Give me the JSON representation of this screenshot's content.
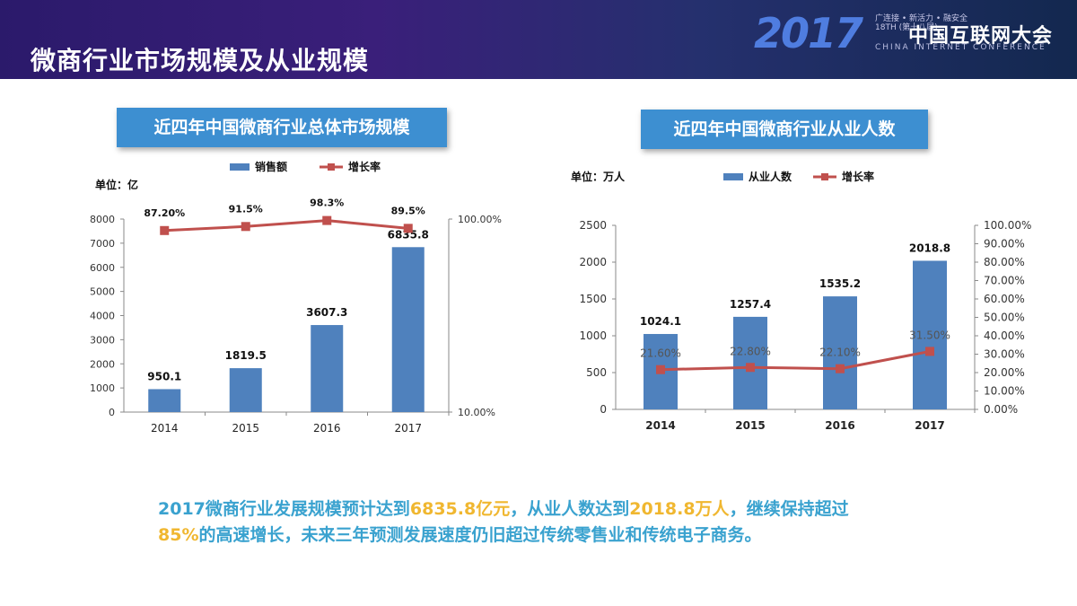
{
  "header": {
    "title": "微商行业市场规模及从业规模",
    "logo_year": "2017",
    "logo_tagline": "广连接 • 新活力 • 融安全",
    "logo_edition": "18TH (第十八届)",
    "logo_name": "中国互联网大会",
    "logo_subtitle": "CHINA INTERNET CONFERENCE"
  },
  "summary": {
    "t1": "2017微商行业发展规模预计达到",
    "h1": "6835.8亿元",
    "t2": "，从业人数达到",
    "h2": "2018.8万人",
    "t3": "，继续保持超过",
    "h3": "85%",
    "t4": "的高速增长，未来三年预测发展速度仍旧超过传统零售业和传统电子商务。"
  },
  "colors": {
    "bar": "#4f81bd",
    "line": "#c0504d",
    "title_bg": "#3d8fd1",
    "highlight": "#f0b730",
    "summary_text": "#3aa2cf"
  },
  "chart_data": [
    {
      "type": "bar",
      "panel_title": "近四年中国微商行业总体市场规模",
      "unit_label": "单位：亿",
      "categories": [
        "2014",
        "2015",
        "2016",
        "2017"
      ],
      "series": [
        {
          "name": "销售额",
          "type": "bar",
          "axis": "left",
          "values": [
            950.1,
            1819.5,
            3607.3,
            6835.8
          ],
          "labels": [
            "950.1",
            "1819.5",
            "3607.3",
            "6835.8"
          ]
        },
        {
          "name": "增长率",
          "type": "line",
          "axis": "right",
          "values": [
            87.2,
            91.5,
            98.3,
            89.5
          ],
          "labels": [
            "87.20%",
            "91.5%",
            "98.3%",
            "89.5%"
          ]
        }
      ],
      "y_left": {
        "min": 0,
        "max": 8000,
        "ticks": [
          "0",
          "1000",
          "2000",
          "3000",
          "4000",
          "5000",
          "6000",
          "7000",
          "8000"
        ]
      },
      "y_right": {
        "min": 10,
        "max": 100,
        "scale": "log",
        "ticks": [
          "10.00%",
          "100.00%"
        ]
      },
      "legend": "top"
    },
    {
      "type": "bar",
      "panel_title": "近四年中国微商行业从业人数",
      "unit_label": "单位：万人",
      "categories": [
        "2014",
        "2015",
        "2016",
        "2017"
      ],
      "series": [
        {
          "name": "从业人数",
          "type": "bar",
          "axis": "left",
          "values": [
            1024.1,
            1257.4,
            1535.2,
            2018.8
          ],
          "labels": [
            "1024.1",
            "1257.4",
            "1535.2",
            "2018.8"
          ]
        },
        {
          "name": "增长率",
          "type": "line",
          "axis": "right",
          "values": [
            21.6,
            22.8,
            22.1,
            31.5
          ],
          "labels": [
            "21.60%",
            "22.80%",
            "22.10%",
            "31.50%"
          ]
        }
      ],
      "y_left": {
        "min": 0,
        "max": 2500,
        "ticks": [
          "0",
          "500",
          "1000",
          "1500",
          "2000",
          "2500"
        ]
      },
      "y_right": {
        "min": 0,
        "max": 100,
        "scale": "linear",
        "ticks": [
          "0.00%",
          "10.00%",
          "20.00%",
          "30.00%",
          "40.00%",
          "50.00%",
          "60.00%",
          "70.00%",
          "80.00%",
          "90.00%",
          "100.00%"
        ]
      },
      "legend": "top"
    }
  ]
}
